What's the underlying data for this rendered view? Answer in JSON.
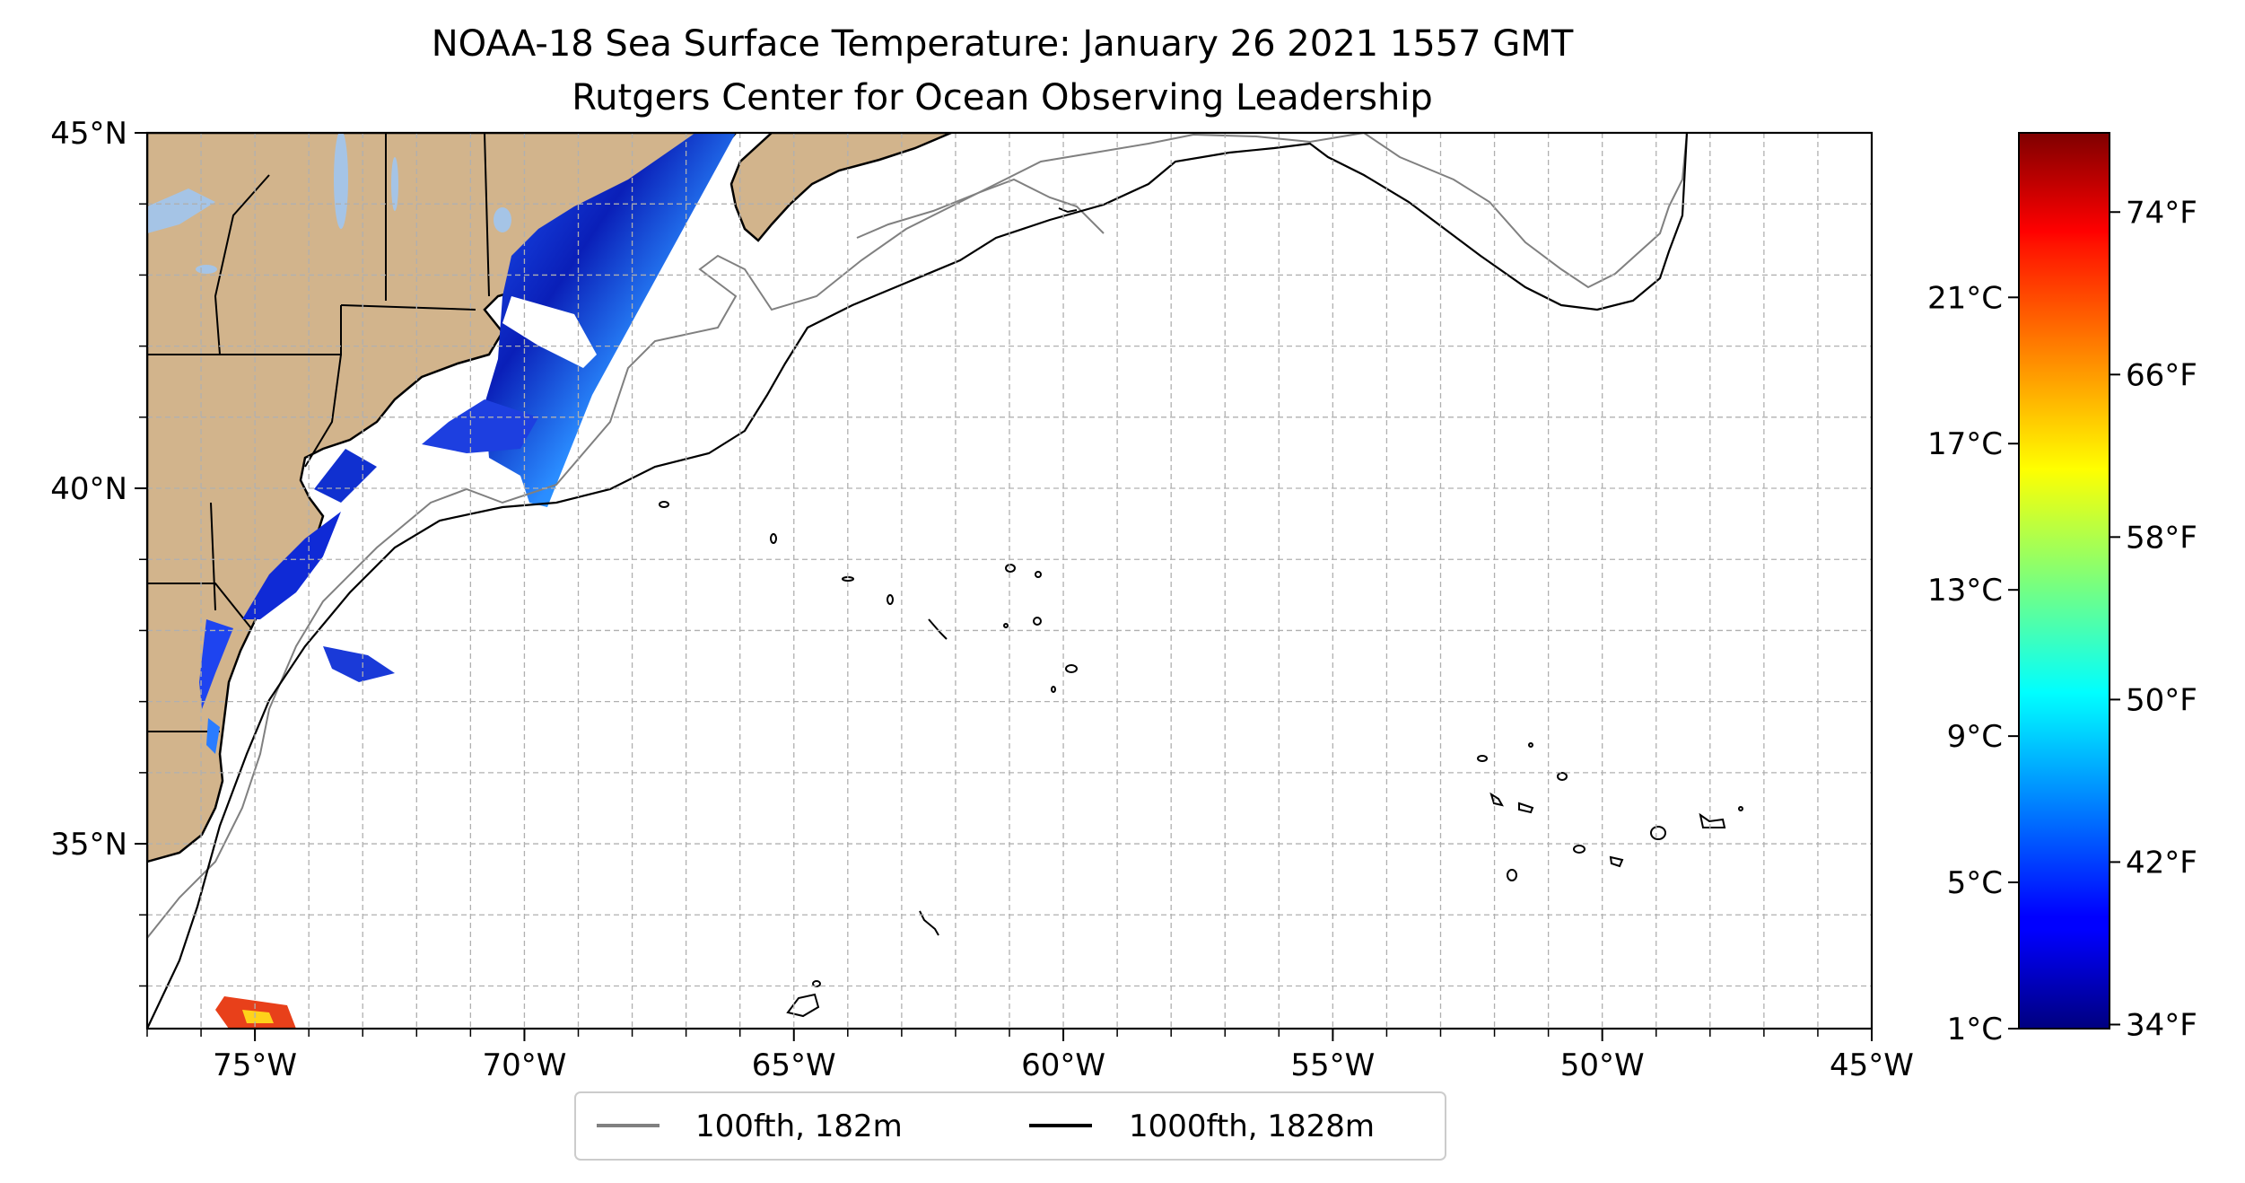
{
  "title": {
    "line1": "NOAA-18 Sea Surface Temperature: January 26 2021 1557 GMT",
    "line2": "Rutgers Center for Ocean Observing Leadership"
  },
  "axes": {
    "lon_range": [
      -77,
      -45
    ],
    "lat_range": [
      32.4,
      45
    ],
    "lon_ticks": [
      {
        "value": -75,
        "label": "75°W"
      },
      {
        "value": -70,
        "label": "70°W"
      },
      {
        "value": -65,
        "label": "65°W"
      },
      {
        "value": -60,
        "label": "60°W"
      },
      {
        "value": -55,
        "label": "55°W"
      },
      {
        "value": -50,
        "label": "50°W"
      },
      {
        "value": -45,
        "label": "45°W"
      }
    ],
    "lat_ticks": [
      {
        "value": 45,
        "label": "45°N"
      },
      {
        "value": 40,
        "label": "40°N"
      },
      {
        "value": 35,
        "label": "35°N"
      }
    ],
    "grid": true
  },
  "legend": {
    "placement": "bottom-center",
    "items": [
      {
        "label": "100fth, 182m",
        "color": "#808080"
      },
      {
        "label": "1000fth, 1828m",
        "color": "#000000"
      }
    ]
  },
  "colorbar": {
    "colormap": "jet",
    "celsius_range": [
      1,
      25.5
    ],
    "celsius_ticks": [
      {
        "value": 1,
        "label": "1°C"
      },
      {
        "value": 5,
        "label": "5°C"
      },
      {
        "value": 9,
        "label": "9°C"
      },
      {
        "value": 13,
        "label": "13°C"
      },
      {
        "value": 17,
        "label": "17°C"
      },
      {
        "value": 21,
        "label": "21°C"
      }
    ],
    "fahrenheit_ticks": [
      {
        "value": 34,
        "label": "34°F"
      },
      {
        "value": 42,
        "label": "42°F"
      },
      {
        "value": 50,
        "label": "50°F"
      },
      {
        "value": 58,
        "label": "58°F"
      },
      {
        "value": 66,
        "label": "66°F"
      },
      {
        "value": 74,
        "label": "74°F"
      }
    ]
  },
  "colors": {
    "land": "#d2b48c",
    "lakes": "#a5c4e6",
    "isobath_100fth": "#808080",
    "isobath_1000fth": "#000000"
  }
}
